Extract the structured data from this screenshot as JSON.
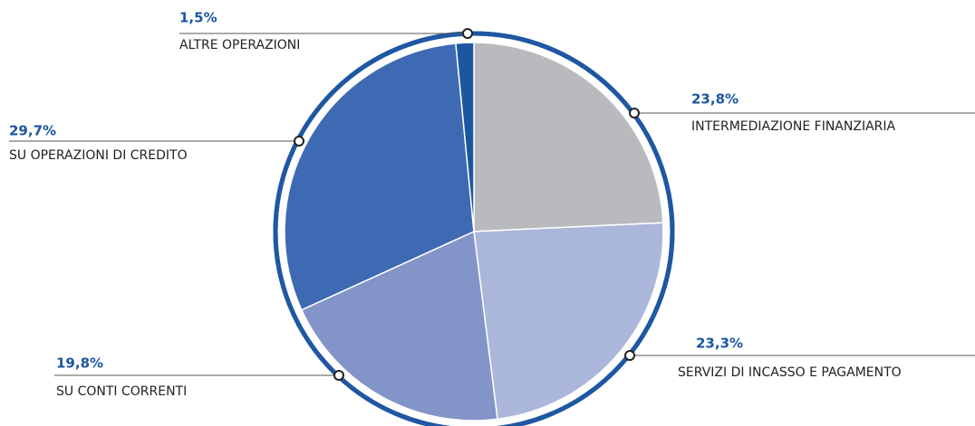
{
  "chart_data": {
    "type": "pie",
    "categories": [
      "INTERMEDIAZIONE FINANZIARIA",
      "SERVIZI DI INCASSO E PAGAMENTO",
      "SU CONTI CORRENTI",
      "SU OPERAZIONI DI CREDITO",
      "ALTRE OPERAZIONI"
    ],
    "values": [
      23.8,
      23.3,
      19.8,
      29.7,
      1.5
    ],
    "value_labels": [
      "23,8%",
      "23,3%",
      "19,8%",
      "29,7%",
      "1,5%"
    ],
    "colors": [
      "#b9babe",
      "#abb6db",
      "#8394c8",
      "#3e6ab3",
      "#1b56a1"
    ]
  }
}
